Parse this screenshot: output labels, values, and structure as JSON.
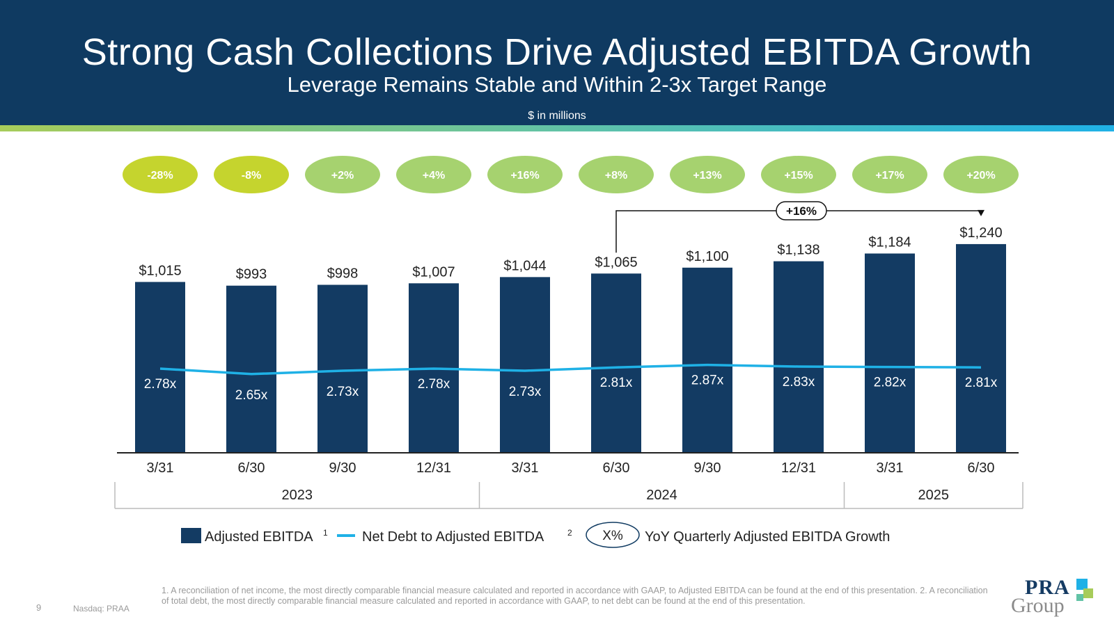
{
  "header": {
    "title": "Strong Cash Collections Drive Adjusted EBITDA Growth",
    "subtitle": "Leverage Remains Stable and Within 2-3x Target Range",
    "units": "$ in millions"
  },
  "colors": {
    "navy": "#0f3a61",
    "bar": "#133b63",
    "line": "#1fb1e6",
    "pill_negative": "#c5d42e",
    "pill_positive": "#a6d26f",
    "axis": "#222222"
  },
  "chart_data": {
    "type": "bar",
    "categories": [
      "3/31",
      "6/30",
      "9/30",
      "12/31",
      "3/31",
      "6/30",
      "9/30",
      "12/31",
      "3/31",
      "6/30"
    ],
    "years": [
      {
        "label": "2023",
        "count": 4
      },
      {
        "label": "2024",
        "count": 4
      },
      {
        "label": "2025",
        "count": 2
      }
    ],
    "series": [
      {
        "name": "Adjusted EBITDA",
        "superscript": "1",
        "type": "bar",
        "values": [
          1015,
          993,
          998,
          1007,
          1044,
          1065,
          1100,
          1138,
          1184,
          1240
        ],
        "labels": [
          "$1,015",
          "$993",
          "$998",
          "$1,007",
          "$1,044",
          "$1,065",
          "$1,100",
          "$1,138",
          "$1,184",
          "$1,240"
        ]
      },
      {
        "name": "Net Debt to Adjusted EBITDA",
        "superscript": "2",
        "type": "line",
        "values": [
          2.78,
          2.65,
          2.73,
          2.78,
          2.73,
          2.81,
          2.87,
          2.83,
          2.82,
          2.81
        ],
        "labels": [
          "2.78x",
          "2.65x",
          "2.73x",
          "2.78x",
          "2.73x",
          "2.81x",
          "2.87x",
          "2.83x",
          "2.82x",
          "2.81x"
        ]
      }
    ],
    "yoy_growth": {
      "name": "YoY Quarterly Adjusted EBITDA Growth",
      "values": [
        -28,
        -8,
        2,
        4,
        16,
        8,
        13,
        15,
        17,
        20
      ],
      "labels": [
        "-28%",
        "-8%",
        "+2%",
        "+4%",
        "+16%",
        "+8%",
        "+13%",
        "+15%",
        "+17%",
        "+20%"
      ]
    },
    "annotation": {
      "from_index": 5,
      "to_index": 9,
      "label": "+16%"
    },
    "legend": {
      "placeholder": "X%"
    },
    "ylim": [
      0,
      1400
    ]
  },
  "footer": {
    "page_number": "9",
    "ticker": "Nasdaq: PRAA",
    "footnote": "1. A reconciliation of net income, the most directly comparable financial measure calculated and reported in accordance with GAAP, to Adjusted EBITDA can be found at the end of this presentation. 2. A reconciliation of total debt, the most directly comparable financial measure calculated and reported in accordance with GAAP, to net debt can be found at the end of this presentation.",
    "logo_top": "PRA",
    "logo_bottom": "Group"
  }
}
